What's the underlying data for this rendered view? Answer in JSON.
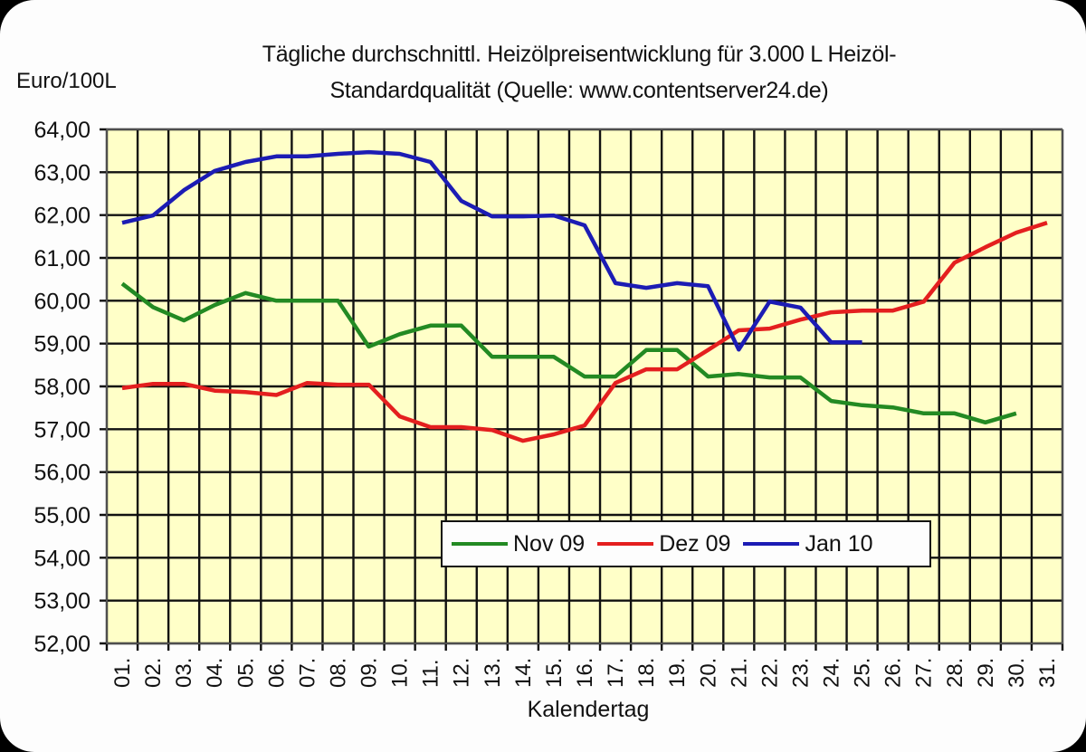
{
  "chart_data": {
    "type": "line",
    "title": "Tägliche durchschnittl. Heizölpreisentwicklung für 3.000 L Heizöl-Standardqualität (Quelle: www.contentserver24.de)",
    "title_lines": [
      "Tägliche durchschnittl. Heizölpreisentwicklung für 3.000 L Heizöl-",
      "Standardqualität (Quelle: www.contentserver24.de)"
    ],
    "xlabel": "Kalendertag",
    "ylabel": "Euro/100L",
    "ylim": [
      52,
      64
    ],
    "yticks": [
      "52,00",
      "53,00",
      "54,00",
      "55,00",
      "56,00",
      "57,00",
      "58,00",
      "59,00",
      "60,00",
      "61,00",
      "62,00",
      "63,00",
      "64,00"
    ],
    "categories": [
      "01.",
      "02.",
      "03.",
      "04.",
      "05.",
      "06.",
      "07.",
      "08.",
      "09.",
      "10.",
      "11.",
      "12.",
      "13.",
      "14.",
      "15.",
      "16.",
      "17.",
      "18.",
      "19.",
      "20.",
      "21.",
      "22.",
      "23.",
      "24.",
      "25.",
      "26.",
      "27.",
      "28.",
      "29.",
      "30.",
      "31."
    ],
    "grid": true,
    "legend_position": "inside-bottom-center",
    "series": [
      {
        "name": "Nov 09",
        "color": "#238a23",
        "values": [
          60.4,
          59.85,
          59.54,
          59.9,
          60.18,
          60.0,
          60.0,
          60.0,
          58.93,
          59.22,
          59.42,
          59.42,
          58.69,
          58.69,
          58.69,
          58.23,
          58.23,
          58.85,
          58.85,
          58.23,
          58.29,
          58.21,
          58.21,
          57.66,
          57.56,
          57.51,
          57.37,
          57.37,
          57.16,
          57.37,
          null
        ]
      },
      {
        "name": "Dez 09",
        "color": "#e41f1f",
        "values": [
          57.96,
          58.06,
          58.06,
          57.9,
          57.87,
          57.8,
          58.08,
          58.04,
          58.04,
          57.3,
          57.05,
          57.05,
          56.98,
          56.73,
          56.88,
          57.09,
          58.08,
          58.4,
          58.4,
          58.85,
          59.31,
          59.35,
          59.56,
          59.73,
          59.77,
          59.77,
          59.98,
          60.89,
          61.25,
          61.59,
          61.82
        ]
      },
      {
        "name": "Jan 10",
        "color": "#1c1cb4",
        "values": [
          61.82,
          61.99,
          62.58,
          63.03,
          63.24,
          63.37,
          63.37,
          63.43,
          63.47,
          63.43,
          63.24,
          62.33,
          61.97,
          61.97,
          61.99,
          61.76,
          60.41,
          60.3,
          60.41,
          60.34,
          58.86,
          59.98,
          59.84,
          59.03,
          59.03,
          null,
          null,
          null,
          null,
          null,
          null
        ]
      }
    ]
  },
  "colors": {
    "plot_background": "#ffffc8",
    "grid": "#111111",
    "frame": "#fdfdfd"
  }
}
